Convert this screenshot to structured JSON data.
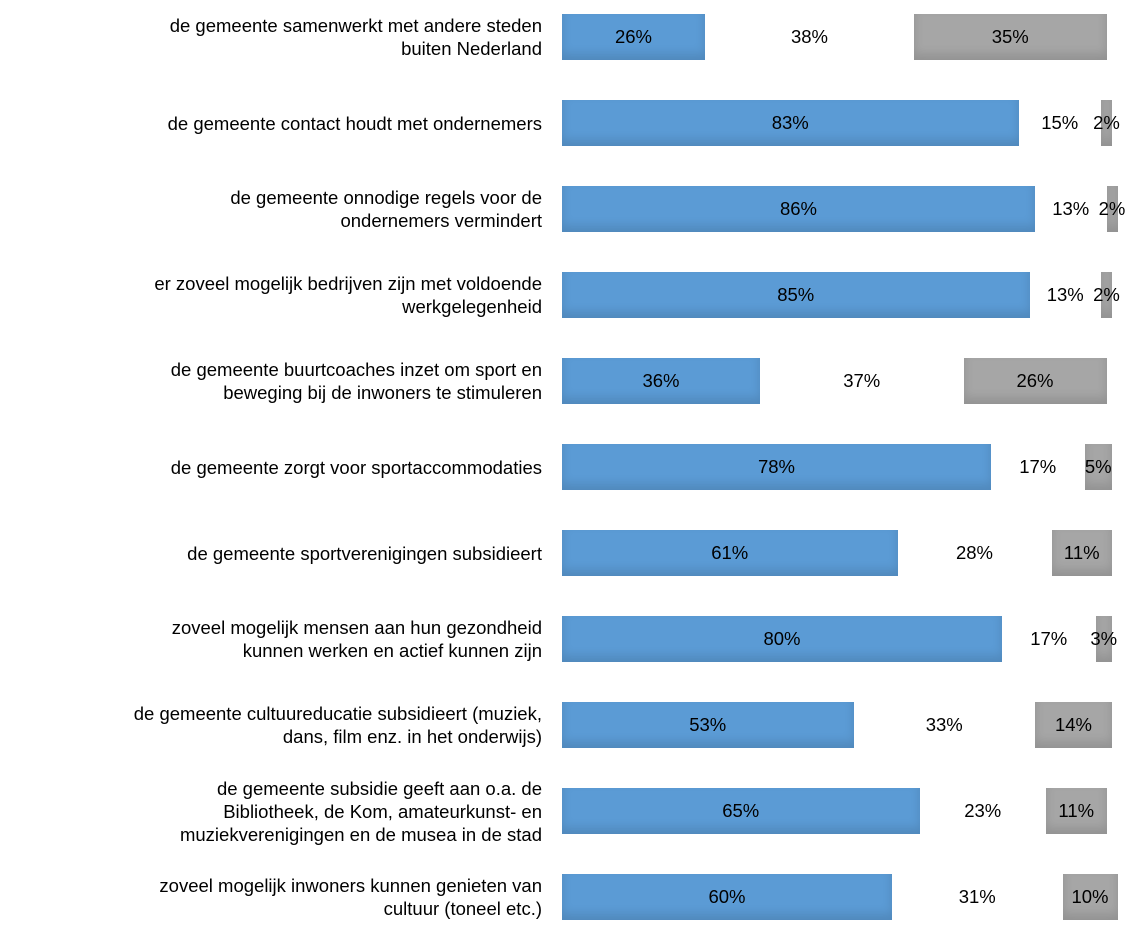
{
  "chart_data": {
    "type": "stacked-bar-horizontal",
    "categories": [
      "de gemeente samenwerkt met andere steden\nbuiten Nederland",
      "de gemeente contact houdt met ondernemers",
      "de gemeente onnodige regels voor de\nondernemers vermindert",
      "er zoveel mogelijk bedrijven zijn met voldoende\nwerkgelegenheid",
      "de gemeente buurtcoaches inzet om sport en\nbeweging bij de inwoners te stimuleren",
      "de gemeente zorgt voor sportaccommodaties",
      "de gemeente sportverenigingen subsidieert",
      "zoveel mogelijk mensen aan hun gezondheid\nkunnen werken en actief kunnen zijn",
      "de gemeente cultuureducatie subsidieert (muziek,\ndans, film enz. in het onderwijs)",
      "de gemeente subsidie geeft aan o.a. de\nBibliotheek, de Kom, amateurkunst- en\nmuziekverenigingen en de musea in de stad",
      "zoveel mogelijk inwoners kunnen genieten van\ncultuur (toneel etc.)"
    ],
    "series": [
      {
        "color": "#5b9bd5",
        "values": [
          26,
          83,
          86,
          85,
          36,
          78,
          61,
          80,
          53,
          65,
          60
        ],
        "value_labels": [
          "26%",
          "83%",
          "86%",
          "85%",
          "36%",
          "78%",
          "61%",
          "80%",
          "53%",
          "65%",
          "60%"
        ]
      },
      {
        "color": "#ffffff",
        "values": [
          38,
          15,
          13,
          13,
          37,
          17,
          28,
          17,
          33,
          23,
          31
        ],
        "value_labels": [
          "38%",
          "15%",
          "13%",
          "13%",
          "37%",
          "17%",
          "28%",
          "17%",
          "33%",
          "23%",
          "31%"
        ]
      },
      {
        "color": "#a6a6a6",
        "values": [
          35,
          2,
          2,
          2,
          26,
          5,
          11,
          3,
          14,
          11,
          10
        ],
        "value_labels": [
          "35%",
          "2%",
          "2%",
          "2%",
          "26%",
          "5%",
          "11%",
          "3%",
          "14%",
          "11%",
          "10%"
        ]
      }
    ],
    "xlim": [
      0,
      100
    ]
  }
}
